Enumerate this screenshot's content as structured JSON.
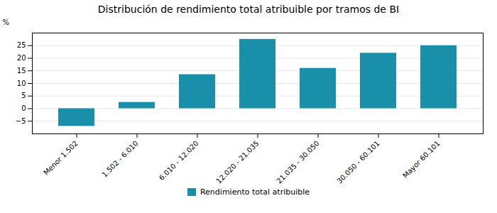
{
  "chart_data": {
    "type": "bar",
    "title": "Distribución de rendimiento total atribuible por tramos de BI",
    "categories": [
      "Menor 1.502",
      "1.502 - 6.010",
      "6.010 - 12.020",
      "12.020 - 21.035",
      "21.035 - 30.050",
      "30.050 - 60.101",
      "Mayor 60.101"
    ],
    "series": [
      {
        "name": "Rendimiento total atribuible",
        "color": "#1a8faa",
        "values": [
          -7.0,
          2.5,
          13.5,
          27.5,
          16.0,
          22.0,
          25.0
        ]
      }
    ],
    "ylabel": "%",
    "ylim": [
      -10,
      30
    ],
    "yticks": [
      -5,
      0,
      5,
      10,
      15,
      20,
      25
    ],
    "grid": true,
    "legend": "bottom"
  }
}
